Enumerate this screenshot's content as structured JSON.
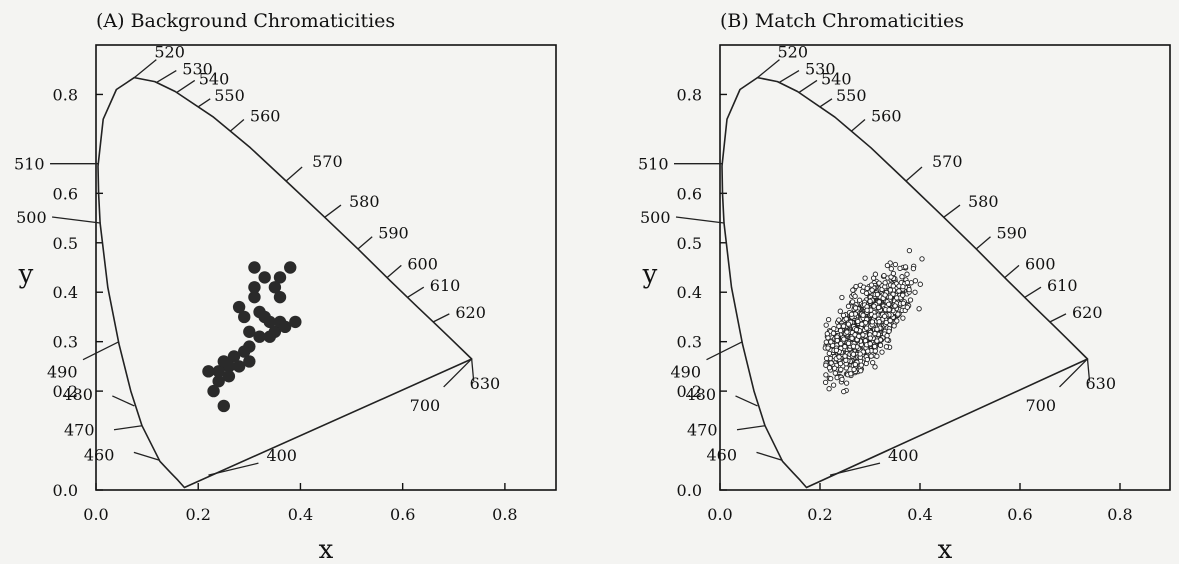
{
  "chart_data": [
    {
      "type": "scatter",
      "title": "(A) Background Chromaticities",
      "xlabel": "x",
      "ylabel": "y",
      "xlim": [
        0.0,
        0.9
      ],
      "ylim": [
        0.0,
        0.9
      ],
      "xticks": [
        "0.0",
        "0.2",
        "0.4",
        "0.6",
        "0.8"
      ],
      "yticks": [
        "0.0",
        "0.2",
        "0.3",
        "0.4",
        "0.5",
        "0.6",
        "0.8"
      ],
      "grid": false,
      "locus_labels": [
        "520",
        "530",
        "540",
        "550",
        "560",
        "570",
        "580",
        "590",
        "600",
        "610",
        "620",
        "630",
        "700",
        "510",
        "500",
        "490",
        "480",
        "470",
        "460",
        "400"
      ],
      "points": [
        [
          0.31,
          0.45
        ],
        [
          0.33,
          0.43
        ],
        [
          0.38,
          0.45
        ],
        [
          0.36,
          0.43
        ],
        [
          0.35,
          0.41
        ],
        [
          0.36,
          0.39
        ],
        [
          0.31,
          0.39
        ],
        [
          0.31,
          0.41
        ],
        [
          0.28,
          0.37
        ],
        [
          0.32,
          0.36
        ],
        [
          0.29,
          0.35
        ],
        [
          0.34,
          0.34
        ],
        [
          0.33,
          0.35
        ],
        [
          0.3,
          0.32
        ],
        [
          0.35,
          0.32
        ],
        [
          0.36,
          0.34
        ],
        [
          0.37,
          0.33
        ],
        [
          0.39,
          0.34
        ],
        [
          0.32,
          0.31
        ],
        [
          0.3,
          0.29
        ],
        [
          0.34,
          0.31
        ],
        [
          0.29,
          0.28
        ],
        [
          0.27,
          0.27
        ],
        [
          0.3,
          0.26
        ],
        [
          0.28,
          0.25
        ],
        [
          0.26,
          0.25
        ],
        [
          0.24,
          0.24
        ],
        [
          0.22,
          0.24
        ],
        [
          0.25,
          0.26
        ],
        [
          0.26,
          0.23
        ],
        [
          0.24,
          0.22
        ],
        [
          0.23,
          0.2
        ],
        [
          0.25,
          0.17
        ]
      ]
    },
    {
      "type": "scatter",
      "title": "(B) Match Chromaticities",
      "xlabel": "x",
      "ylabel": "y",
      "xlim": [
        0.0,
        0.9
      ],
      "ylim": [
        0.0,
        0.9
      ],
      "xticks": [
        "0.0",
        "0.2",
        "0.4",
        "0.6",
        "0.8"
      ],
      "yticks": [
        "0.0",
        "0.2",
        "0.3",
        "0.4",
        "0.5",
        "0.6",
        "0.8"
      ],
      "grid": false,
      "locus_labels": [
        "520",
        "530",
        "540",
        "550",
        "560",
        "570",
        "580",
        "590",
        "600",
        "610",
        "620",
        "630",
        "700",
        "510",
        "500",
        "490",
        "480",
        "470",
        "460",
        "400"
      ],
      "point_cloud": {
        "marker": "open-circle",
        "x_range": [
          0.21,
          0.44
        ],
        "y_range": [
          0.19,
          0.5
        ]
      }
    }
  ]
}
